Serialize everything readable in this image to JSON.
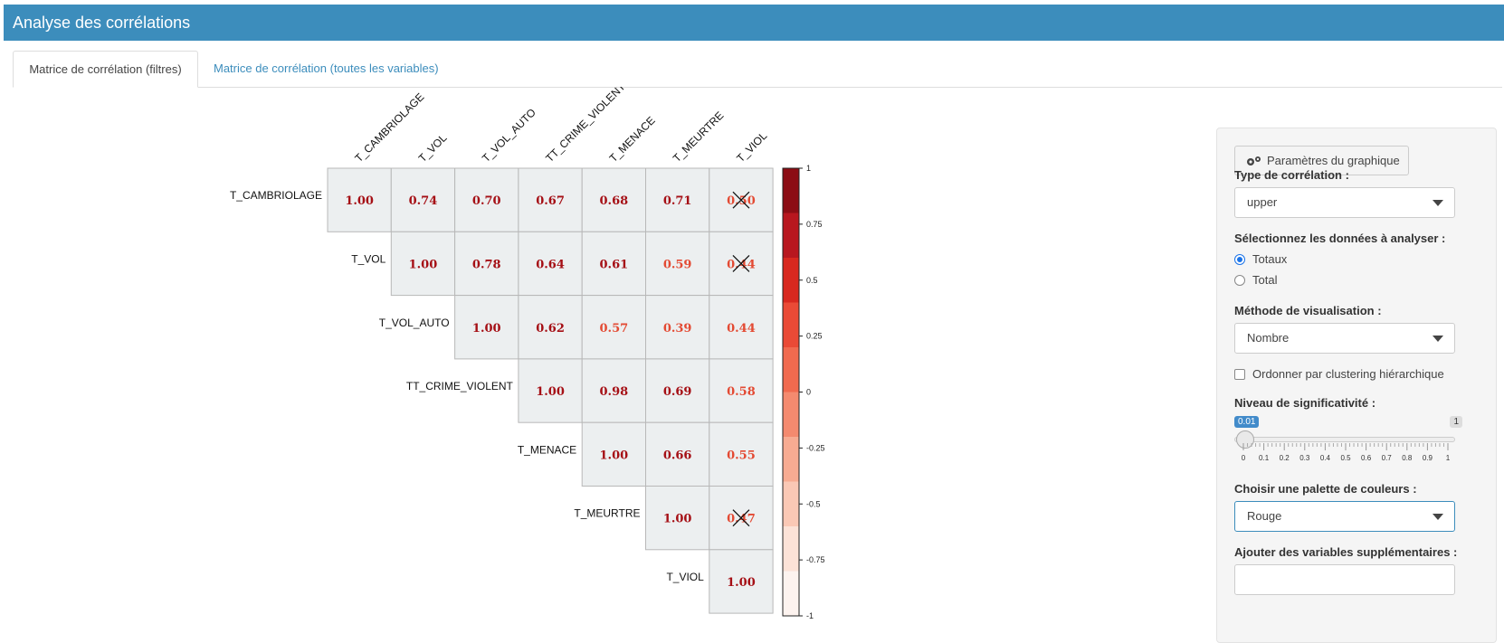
{
  "header": {
    "title": "Analyse des corrélations"
  },
  "tabs": [
    {
      "label": "Matrice de corrélation (filtres)",
      "active": true
    },
    {
      "label": "Matrice de corrélation (toutes les variables)",
      "active": false
    }
  ],
  "matrix": {
    "variables": [
      "T_CAMBRIOLAGE",
      "T_VOL",
      "T_VOL_AUTO",
      "TT_CRIME_VIOLENT",
      "T_MENACE",
      "T_MEURTRE",
      "T_VIOL"
    ],
    "cells": [
      [
        "1.00",
        "0.74",
        "0.70",
        "0.67",
        "0.68",
        "0.71",
        "0.50"
      ],
      [
        "",
        "1.00",
        "0.78",
        "0.64",
        "0.61",
        "0.59",
        "0.44"
      ],
      [
        "",
        "",
        "1.00",
        "0.62",
        "0.57",
        "0.39",
        "0.44"
      ],
      [
        "",
        "",
        "",
        "1.00",
        "0.98",
        "0.69",
        "0.58"
      ],
      [
        "",
        "",
        "",
        "",
        "1.00",
        "0.66",
        "0.55"
      ],
      [
        "",
        "",
        "",
        "",
        "",
        "1.00",
        "0.47"
      ],
      [
        "",
        "",
        "",
        "",
        "",
        "",
        "1.00"
      ]
    ],
    "not_significant": [
      [
        0,
        6
      ],
      [
        1,
        6
      ],
      [
        5,
        6
      ]
    ],
    "colorbar_labels": [
      "1",
      "0.75",
      "0.5",
      "0.25",
      "0",
      "-0.25",
      "-0.5",
      "-0.75",
      "-1"
    ],
    "colorbar_colors": [
      "#8c0d14",
      "#b8171f",
      "#d8281f",
      "#ea4a36",
      "#f06a4f",
      "#f48a6f",
      "#f7ab92",
      "#fac8b5",
      "#fce2d7",
      "#fdf3ef"
    ],
    "text_color_high": "#a50f15",
    "text_color_low": "#e34a33"
  },
  "sidebar": {
    "params_button": "Paramètres du graphique",
    "type_label": "Type de corrélation :",
    "type_value": "upper",
    "data_label": "Sélectionnez les données à analyser :",
    "data_options": [
      {
        "label": "Totaux",
        "selected": true
      },
      {
        "label": "Total",
        "selected": false
      }
    ],
    "method_label": "Méthode de visualisation :",
    "method_value": "Nombre",
    "cluster_label": "Ordonner par clustering hiérarchique",
    "signif_label": "Niveau de significativité :",
    "slider_min": "0.01",
    "slider_max": "1",
    "slider_value": 0.01,
    "slider_ticks": [
      "0",
      "0.1",
      "0.2",
      "0.3",
      "0.4",
      "0.5",
      "0.6",
      "0.7",
      "0.8",
      "0.9",
      "1"
    ],
    "palette_label": "Choisir une palette de couleurs :",
    "palette_value": "Rouge",
    "extra_label": "Ajouter des variables supplémentaires :",
    "extra_value": ""
  }
}
